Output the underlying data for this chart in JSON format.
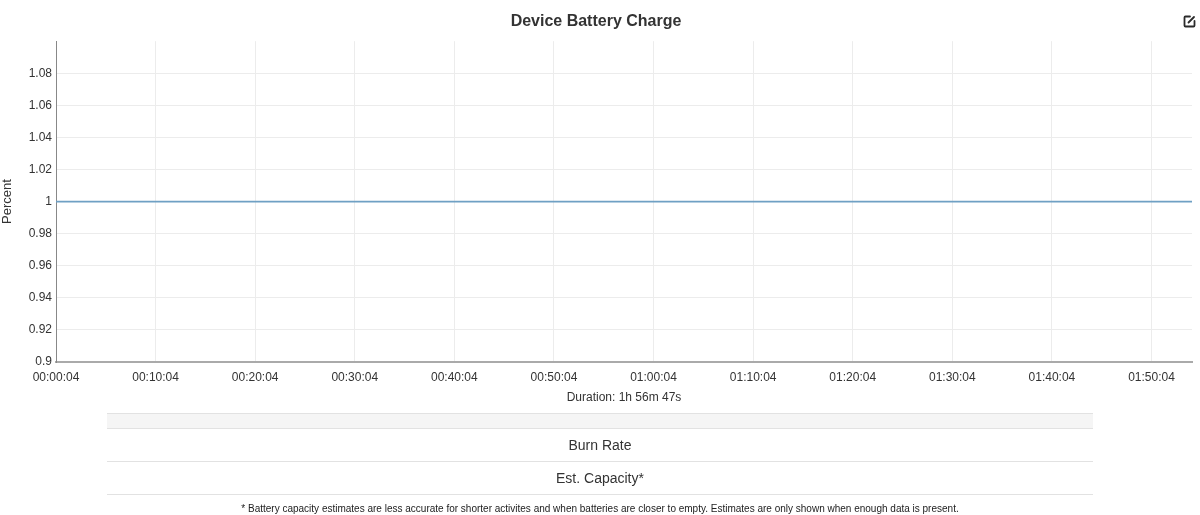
{
  "chart_data": {
    "type": "line",
    "title": "Device Battery Charge",
    "xlabel": "Duration: 1h 56m 47s",
    "ylabel": "Percent",
    "x": [
      0.00111,
      1.9022
    ],
    "values": [
      1,
      1
    ],
    "color": "#6fa0c4",
    "xlim": [
      0.00111,
      1.9022
    ],
    "xticks": [
      {
        "value": 0.00111,
        "label": "00:00:04"
      },
      {
        "value": 0.16778,
        "label": "00:10:04"
      },
      {
        "value": 0.33444,
        "label": "00:20:04"
      },
      {
        "value": 0.50111,
        "label": "00:30:04"
      },
      {
        "value": 0.66778,
        "label": "00:40:04"
      },
      {
        "value": 0.83444,
        "label": "00:50:04"
      },
      {
        "value": 1.00111,
        "label": "01:00:04"
      },
      {
        "value": 1.16778,
        "label": "01:10:04"
      },
      {
        "value": 1.33444,
        "label": "01:20:04"
      },
      {
        "value": 1.50111,
        "label": "01:30:04"
      },
      {
        "value": 1.66778,
        "label": "01:40:04"
      },
      {
        "value": 1.83444,
        "label": "01:50:04"
      }
    ],
    "ylim": [
      0.9,
      1.1
    ],
    "yticks": [
      0.9,
      0.92,
      0.94,
      0.96,
      0.98,
      1,
      1.02,
      1.04,
      1.06,
      1.08
    ],
    "grid": true,
    "marker": "none",
    "line_style": "solid",
    "annotations": [
      "Burn Rate",
      "Est. Capacity*",
      "* Battery capacity estimates are less accurate for shorter activites and when batteries are closer to empty. Estimates are only shown when enough data is present."
    ]
  }
}
